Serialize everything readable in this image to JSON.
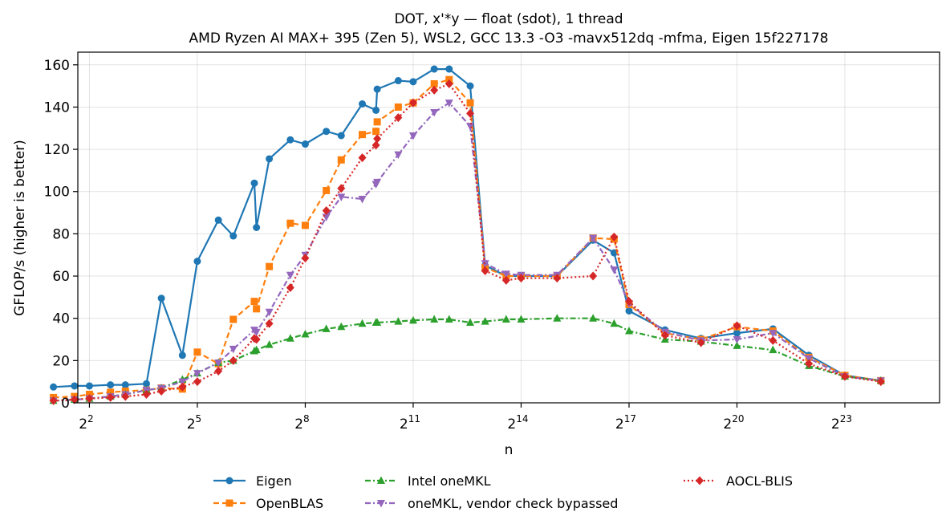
{
  "chart_data": {
    "type": "line",
    "title": "DOT, x'*y — float (sdot), 1 thread",
    "subtitle": "AMD Ryzen AI MAX+ 395 (Zen 5), WSL2, GCC 13.3 -O3 -mavx512dq -mfma, Eigen 15f227178",
    "xlabel": "n",
    "ylabel": "GFLOP/s (higher is better)",
    "x_scale": "log2",
    "xlim": [
      3.2,
      52000000
    ],
    "ylim": [
      0,
      166
    ],
    "x_ticks": [
      {
        "value": 4,
        "base": "2",
        "exp": "2"
      },
      {
        "value": 32,
        "base": "2",
        "exp": "5"
      },
      {
        "value": 256,
        "base": "2",
        "exp": "8"
      },
      {
        "value": 2048,
        "base": "2",
        "exp": "11"
      },
      {
        "value": 16384,
        "base": "2",
        "exp": "14"
      },
      {
        "value": 131072,
        "base": "2",
        "exp": "17"
      },
      {
        "value": 1048576,
        "base": "2",
        "exp": "20"
      },
      {
        "value": 8388608,
        "base": "2",
        "exp": "23"
      }
    ],
    "y_ticks": [
      "0",
      "20",
      "40",
      "60",
      "80",
      "100",
      "120",
      "140",
      "160"
    ],
    "grid": true,
    "legend_position": "bottom",
    "series": [
      {
        "name": "Eigen",
        "color": "#1f77b4",
        "marker": "circle",
        "linestyle": "solid",
        "x": [
          2,
          3,
          4,
          6,
          8,
          12,
          16,
          24,
          32,
          48,
          64,
          96,
          100,
          128,
          192,
          256,
          384,
          512,
          768,
          1000,
          1024,
          1536,
          2048,
          3072,
          4096,
          6144,
          8192,
          12288,
          16384,
          32768,
          65536,
          98304,
          131072,
          262144,
          524288,
          1048576,
          2097152,
          4194304,
          8388608,
          16777216
        ],
        "y": [
          7.5,
          8,
          8,
          8.5,
          8.5,
          9,
          49.5,
          22.5,
          67,
          86.5,
          79,
          104,
          83,
          115.5,
          124.5,
          122.5,
          128.5,
          126.5,
          141.5,
          138.5,
          148.5,
          152.5,
          152,
          158,
          158,
          150,
          65,
          60,
          60,
          60,
          77,
          71,
          43.5,
          34.5,
          30.5,
          33,
          35,
          22.5,
          13,
          10.5
        ]
      },
      {
        "name": "OpenBLAS",
        "color": "#ff7f0e",
        "marker": "square",
        "linestyle": "dashed",
        "x": [
          2,
          3,
          4,
          6,
          8,
          12,
          16,
          24,
          32,
          48,
          64,
          96,
          100,
          128,
          192,
          256,
          384,
          512,
          768,
          1000,
          1024,
          1536,
          2048,
          3072,
          4096,
          6144,
          8192,
          12288,
          16384,
          32768,
          65536,
          98304,
          131072,
          262144,
          524288,
          1048576,
          2097152,
          4194304,
          8388608,
          16777216
        ],
        "y": [
          2.5,
          3,
          4,
          5,
          5.5,
          6,
          7,
          6.5,
          24,
          18.5,
          39.5,
          48,
          44.5,
          64.5,
          85,
          84,
          100.5,
          115,
          127,
          128.5,
          133,
          140,
          142,
          151,
          153,
          142,
          64,
          60,
          60,
          60,
          78,
          77.5,
          46.5,
          33,
          30,
          36,
          34,
          21.5,
          13,
          10.5
        ]
      },
      {
        "name": "Intel oneMKL",
        "color": "#2ca02c",
        "marker": "triangle-up",
        "linestyle": "dashdot",
        "x": [
          2,
          3,
          4,
          6,
          8,
          12,
          16,
          24,
          32,
          48,
          64,
          96,
          100,
          128,
          192,
          256,
          384,
          512,
          768,
          1000,
          1024,
          1536,
          2048,
          3072,
          4096,
          6144,
          8192,
          12288,
          16384,
          32768,
          65536,
          98304,
          131072,
          262144,
          524288,
          1048576,
          2097152,
          4194304,
          8388608,
          16777216
        ],
        "y": [
          1,
          1.5,
          2,
          3,
          4,
          6,
          7,
          11,
          14,
          19,
          20,
          24.5,
          25,
          27.5,
          30.5,
          32.5,
          35,
          36,
          37.5,
          38,
          38,
          38.5,
          39,
          39.5,
          39.5,
          38,
          38.5,
          39.5,
          39.5,
          40,
          40,
          37.5,
          34,
          30,
          29,
          27,
          25,
          17.5,
          12.5,
          10.5
        ]
      },
      {
        "name": "oneMKL, vendor check bypassed",
        "color": "#9467bd",
        "marker": "triangle-down",
        "linestyle": "dashdot",
        "x": [
          2,
          3,
          4,
          6,
          8,
          12,
          16,
          24,
          32,
          48,
          64,
          96,
          100,
          128,
          192,
          256,
          384,
          512,
          768,
          1000,
          1024,
          1536,
          2048,
          3072,
          4096,
          6144,
          8192,
          12288,
          16384,
          32768,
          65536,
          98304,
          131072,
          262144,
          524288,
          1048576,
          2097152,
          4194304,
          8388608,
          16777216
        ],
        "y": [
          1,
          1.5,
          2,
          3,
          4,
          6,
          7,
          10,
          14,
          19,
          25.5,
          34.5,
          33.5,
          43,
          60.5,
          70,
          88,
          97.5,
          96.5,
          103.5,
          104.5,
          117.5,
          126.5,
          137.5,
          142,
          131,
          66,
          61,
          60.5,
          60.5,
          78,
          63,
          47,
          33.5,
          29.5,
          30,
          33,
          21,
          12.5,
          10.5
        ]
      },
      {
        "name": "AOCL-BLIS",
        "color": "#d62728",
        "marker": "diamond",
        "linestyle": "dotted",
        "x": [
          2,
          3,
          4,
          6,
          8,
          12,
          16,
          24,
          32,
          48,
          64,
          96,
          100,
          128,
          192,
          256,
          384,
          512,
          768,
          1000,
          1024,
          1536,
          2048,
          3072,
          4096,
          6144,
          8192,
          12288,
          16384,
          32768,
          65536,
          98304,
          131072,
          262144,
          524288,
          1048576,
          2097152,
          4194304,
          8388608,
          16777216
        ],
        "y": [
          1,
          1.5,
          2,
          2.5,
          3,
          4,
          5.5,
          7.5,
          10,
          15,
          20,
          30.5,
          30,
          37.5,
          54.5,
          68.5,
          91,
          101.5,
          116,
          122,
          125,
          135,
          142,
          148,
          151,
          137,
          62.5,
          58,
          59,
          59,
          60,
          78.5,
          48,
          32,
          28.5,
          36.5,
          29.5,
          18.5,
          12.5,
          10
        ]
      }
    ]
  }
}
